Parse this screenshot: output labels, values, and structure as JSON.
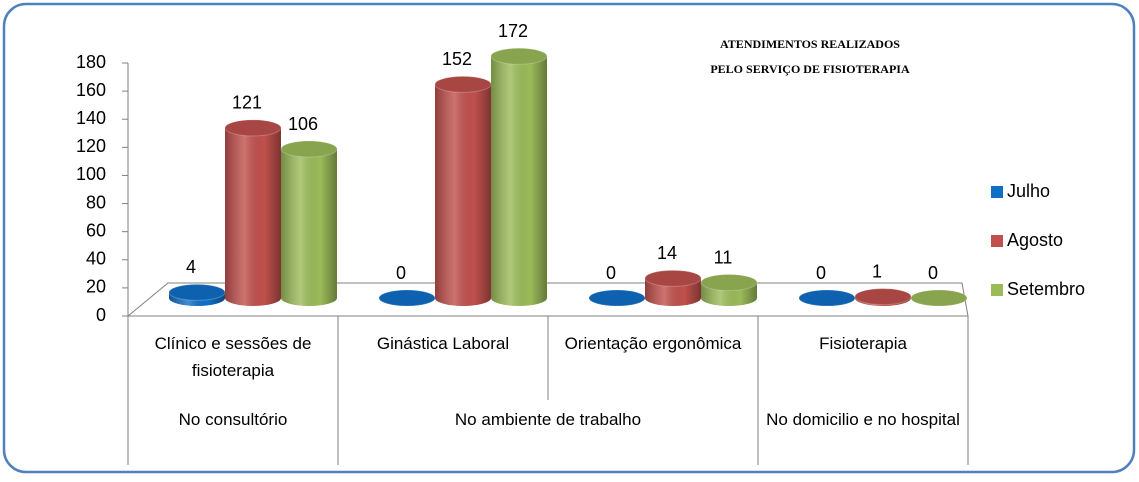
{
  "chart_data": {
    "type": "bar3d",
    "title": [
      "ATENDIMENTOS REALIZADOS",
      "PELO SERVIÇO DE FISIOTERAPIA"
    ],
    "groups": [
      {
        "name": "No consultório",
        "categories": [
          "Clínico e sessões de fisioterapia"
        ]
      },
      {
        "name": "No ambiente de trabalho",
        "categories": [
          "Ginástica Laboral",
          "Orientação ergonômica"
        ]
      },
      {
        "name": "No domicilio e no hospital",
        "categories": [
          "Fisioterapia"
        ]
      }
    ],
    "series": [
      {
        "name": "Julho",
        "color": "#0f6fc6",
        "values": [
          4,
          0,
          0,
          0
        ]
      },
      {
        "name": "Agosto",
        "color": "#c0504d",
        "values": [
          121,
          152,
          14,
          1
        ]
      },
      {
        "name": "Setembro",
        "color": "#9bbb59",
        "values": [
          106,
          172,
          11,
          0
        ]
      }
    ],
    "ylim": [
      0,
      180
    ],
    "yticks": [
      0,
      20,
      40,
      60,
      80,
      100,
      120,
      140,
      160,
      180
    ],
    "legend": "right"
  }
}
